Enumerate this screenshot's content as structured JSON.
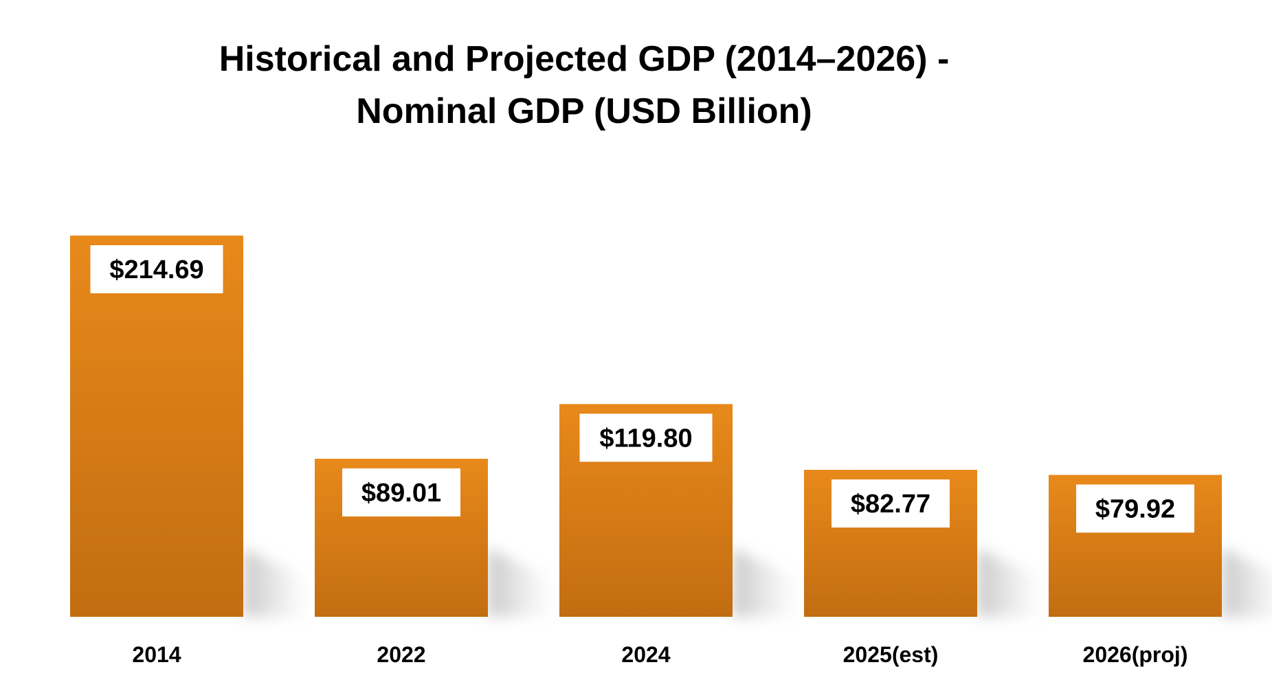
{
  "chart_data": {
    "type": "bar",
    "title": "Historical and Projected GDP (2014–2026) - Nominal GDP (USD Billion)",
    "categories": [
      "2014",
      "2022",
      "2024",
      "2025(est)",
      "2026(proj)"
    ],
    "values": [
      214.69,
      89.01,
      119.8,
      82.77,
      79.92
    ],
    "data_labels": [
      "$214.69",
      "$89.01",
      "$119.80",
      "$82.77",
      "$79.92"
    ],
    "xlabel": "",
    "ylabel": "",
    "ylim": [
      0,
      214.69
    ],
    "grid": false,
    "legend": "none",
    "bar_color_top": "#E8891A",
    "bar_color_bottom": "#C26D12",
    "label_box_color": "#FFFFFF"
  }
}
